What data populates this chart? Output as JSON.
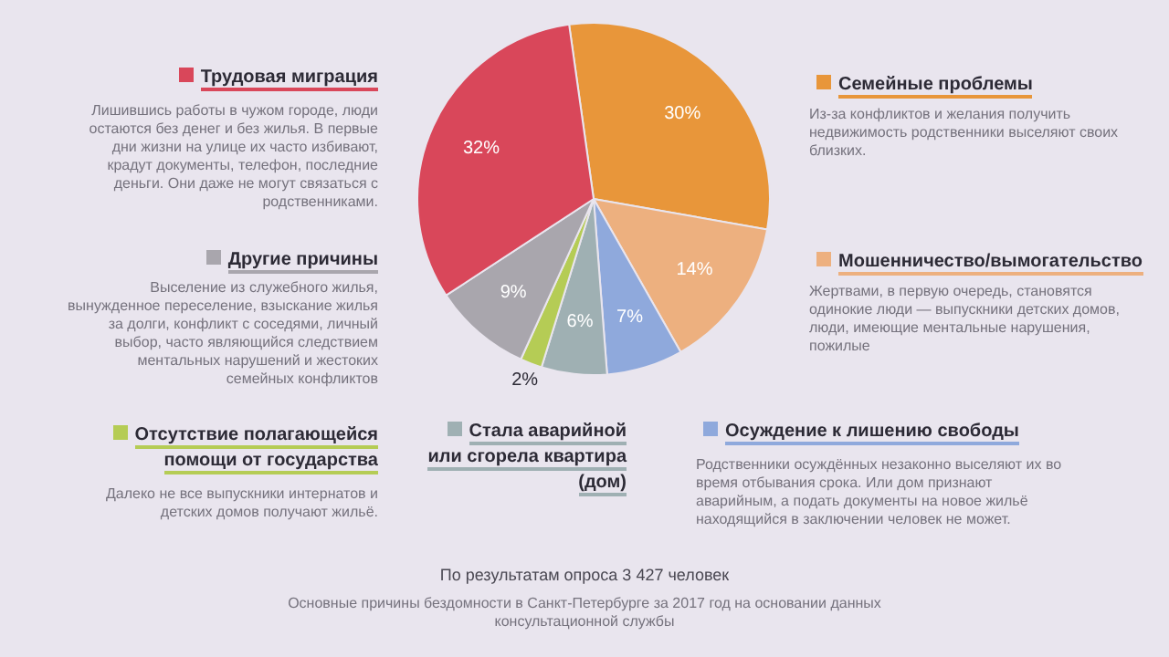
{
  "chart_data": {
    "type": "pie",
    "categories": [
      "Семейные проблемы",
      "Мошенничество/вымогательство",
      "Осуждение к лишению свободы",
      "Стала аварийной или сгорела квартира (дом)",
      "Отсутствие полагающейся помощи от государства",
      "Другие причины",
      "Трудовая миграция"
    ],
    "values": [
      30,
      14,
      7,
      6,
      2,
      9,
      32
    ],
    "value_labels": [
      "30%",
      "14%",
      "7%",
      "6%",
      "2%",
      "9%",
      "32%"
    ],
    "colors": [
      "#e8963a",
      "#edb07f",
      "#8fa9dc",
      "#9fb0b3",
      "#b5cc55",
      "#a9a6ad",
      "#d9475a"
    ],
    "legend": "right",
    "annotations": [
      "Из-за конфликтов и желания получить недвижимость родственники выселяют своих близких.",
      "Жертвами, в первую очередь, становятся одинокие люди — выпускники детских домов, люди, имеющие ментальные нарушения, пожилые",
      "Родственники осуждённых незаконно выселяют их во время отбывания срока. Или дом признают аварийным, а подать документы на новое жильё находящийся в заключении человек не может.",
      "Далеко не все выпускники интернатов и детских домов получают жильё.",
      "Выселение из служебного жилья, вынужденное переселение, взыскание жилья за долги, конфликт с соседями, личный выбор, часто являющийся следствием ментальных нарушений и жестоких семейных конфликтов",
      "Лишившись работы в чужом городе, люди остаются без денег и без жилья. В первые дни жизни на улице их часто избивают, крадут документы, телефон, последние деньги. Они даже не могут связаться с родственниками.",
      "По результатам опроса 3 427 человек",
      "Основные причины бездомности в Санкт-Петербурге за 2017 год на основании данных консультационной службы"
    ]
  }
}
